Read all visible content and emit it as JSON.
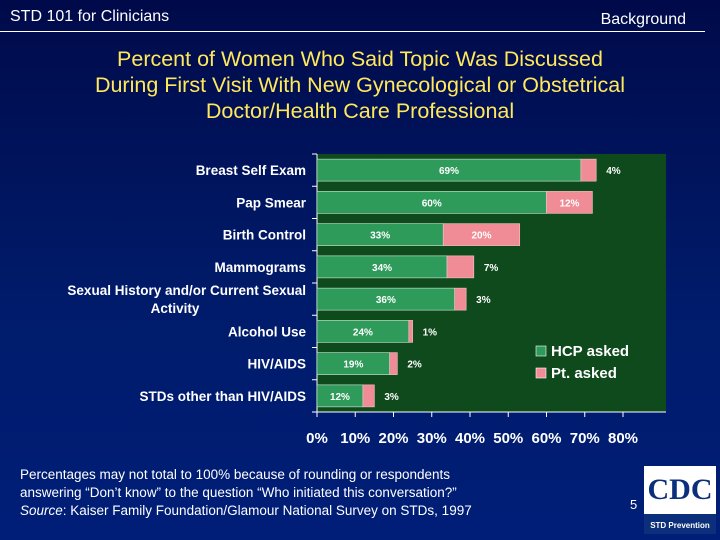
{
  "header": {
    "left": "STD 101 for Clinicians",
    "right": "Background"
  },
  "title_lines": [
    "Percent of Women Who Said Topic Was Discussed",
    "During First Visit With New Gynecological or Obstetrical",
    "Doctor/Health Care Professional"
  ],
  "chart_data": {
    "type": "bar",
    "orientation": "horizontal",
    "stacked": true,
    "categories": [
      "Breast Self Exam",
      "Pap Smear",
      "Birth Control",
      "Mammograms",
      "Sexual History and/or Current Sexual Activity",
      "Alcohol Use",
      "HIV/AIDS",
      "STDs other than HIV/AIDS"
    ],
    "category_lines": [
      [
        "Breast Self Exam"
      ],
      [
        "Pap Smear"
      ],
      [
        "Birth Control"
      ],
      [
        "Mammograms"
      ],
      [
        "Sexual History and/or Current Sexual",
        "Activity"
      ],
      [
        "Alcohol Use"
      ],
      [
        "HIV/AIDS"
      ],
      [
        "STDs other than HIV/AIDS"
      ]
    ],
    "series": [
      {
        "name": "HCP asked",
        "color": "#2e9b5a",
        "values": [
          69,
          60,
          33,
          34,
          36,
          24,
          19,
          12
        ]
      },
      {
        "name": "Pt. asked",
        "color": "#f08c96",
        "values": [
          4,
          12,
          20,
          7,
          3,
          1,
          2,
          3
        ]
      }
    ],
    "data_labels": [
      [
        "69%",
        "60%",
        "33%",
        "34%",
        "36%",
        "24%",
        "19%",
        "12%"
      ],
      [
        "4%",
        "12%",
        "20%",
        "7%",
        "3%",
        "1%",
        "2%",
        "3%"
      ]
    ],
    "xlim": [
      0,
      80
    ],
    "xticks": [
      "0%",
      "10%",
      "20%",
      "30%",
      "40%",
      "50%",
      "60%",
      "70%",
      "80%"
    ],
    "plot_bg": "#0f4a1d",
    "legend_position": "bottom-right",
    "grid": false
  },
  "footnote": {
    "line1": "Percentages may not total to 100% because of rounding or respondents",
    "line2": "answering “Don’t know” to the question “Who initiated this conversation?”",
    "source_label": "Source",
    "source_text": ":  Kaiser Family Foundation/Glamour National Survey on STDs, 1997"
  },
  "page_number": "5",
  "logo": {
    "text": "CDC",
    "subtext": "STD Prevention",
    "color": "#0b2f7a"
  }
}
